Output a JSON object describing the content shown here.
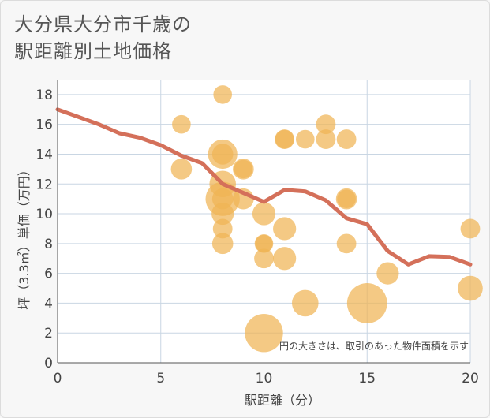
{
  "title": "大分県大分市千歳の\n駅距離別土地価格",
  "chart_data": {
    "type": "scatter",
    "title": "大分県大分市千歳の駅距離別土地価格",
    "xlabel": "駅距離（分）",
    "ylabel": "坪（3.3㎡）単価（万円）",
    "xlim": [
      0,
      20
    ],
    "ylim": [
      0,
      19
    ],
    "xticks": [
      0,
      5,
      10,
      15,
      20
    ],
    "yticks": [
      0,
      2,
      4,
      6,
      8,
      10,
      12,
      14,
      16,
      18
    ],
    "grid": true,
    "annotation": "円の大きさは、取引のあった物件面積を示す",
    "bubble_color": "#f0b455",
    "line_color": "#d4705a",
    "points": [
      {
        "x": 6,
        "y": 16,
        "size": 1
      },
      {
        "x": 6,
        "y": 13,
        "size": 1.5
      },
      {
        "x": 8,
        "y": 18,
        "size": 1
      },
      {
        "x": 8,
        "y": 14,
        "size": 4
      },
      {
        "x": 8,
        "y": 14,
        "size": 1.5
      },
      {
        "x": 8,
        "y": 12,
        "size": 3
      },
      {
        "x": 8,
        "y": 11,
        "size": 6
      },
      {
        "x": 8,
        "y": 11,
        "size": 1.5
      },
      {
        "x": 8,
        "y": 10,
        "size": 1.8
      },
      {
        "x": 8,
        "y": 9,
        "size": 1.2
      },
      {
        "x": 8,
        "y": 8,
        "size": 1.5
      },
      {
        "x": 9,
        "y": 13,
        "size": 1.5
      },
      {
        "x": 9,
        "y": 13,
        "size": 1
      },
      {
        "x": 9,
        "y": 11,
        "size": 1.5
      },
      {
        "x": 10,
        "y": 10,
        "size": 2
      },
      {
        "x": 10,
        "y": 8,
        "size": 1
      },
      {
        "x": 10,
        "y": 8,
        "size": 0.8
      },
      {
        "x": 10,
        "y": 7,
        "size": 1.2
      },
      {
        "x": 10,
        "y": 2,
        "size": 8
      },
      {
        "x": 11,
        "y": 15,
        "size": 1.2
      },
      {
        "x": 11,
        "y": 15,
        "size": 1
      },
      {
        "x": 11,
        "y": 9,
        "size": 2
      },
      {
        "x": 11,
        "y": 7,
        "size": 2
      },
      {
        "x": 12,
        "y": 15,
        "size": 1
      },
      {
        "x": 12,
        "y": 4,
        "size": 3
      },
      {
        "x": 13,
        "y": 16,
        "size": 1.2
      },
      {
        "x": 13,
        "y": 15,
        "size": 1.2
      },
      {
        "x": 14,
        "y": 15,
        "size": 1.2
      },
      {
        "x": 14,
        "y": 11,
        "size": 1.5
      },
      {
        "x": 14,
        "y": 11,
        "size": 1
      },
      {
        "x": 14,
        "y": 8,
        "size": 1.2
      },
      {
        "x": 15,
        "y": 4,
        "size": 9
      },
      {
        "x": 16,
        "y": 6,
        "size": 1.8
      },
      {
        "x": 20,
        "y": 9,
        "size": 1.2
      },
      {
        "x": 20,
        "y": 5,
        "size": 2.5
      }
    ],
    "line": {
      "x": [
        0,
        1,
        2,
        3,
        4,
        5,
        6,
        7,
        8,
        9,
        10,
        11,
        12,
        13,
        14,
        15,
        16,
        17,
        18,
        19,
        20
      ],
      "y": [
        17.0,
        16.5,
        16.0,
        15.4,
        15.1,
        14.6,
        13.9,
        13.4,
        12.0,
        11.4,
        10.8,
        11.6,
        11.5,
        10.9,
        9.7,
        9.3,
        7.5,
        6.6,
        7.15,
        7.1,
        6.6
      ]
    }
  }
}
